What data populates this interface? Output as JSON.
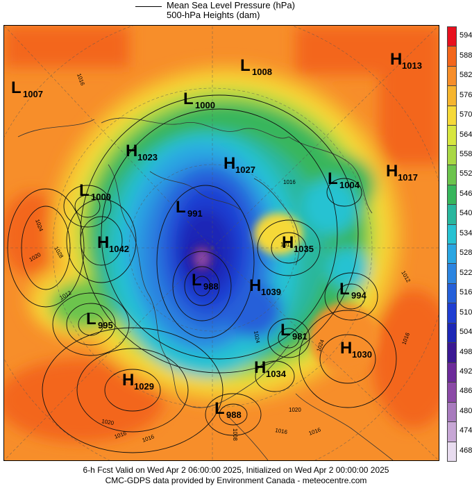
{
  "legend": {
    "line1": "Mean Sea Level Pressure (hPa)",
    "line2": "500-hPa Heights (dam)"
  },
  "colorbar": {
    "levels": [
      "594",
      "588",
      "582",
      "576",
      "570",
      "564",
      "558",
      "552",
      "546",
      "540",
      "534",
      "528",
      "522",
      "516",
      "510",
      "504",
      "498",
      "492",
      "486",
      "480",
      "474",
      "468"
    ],
    "colors": [
      "#e8101e",
      "#f3661c",
      "#f78e2a",
      "#f6b52e",
      "#f6d938",
      "#d7e640",
      "#a9d845",
      "#6cc44d",
      "#37b65c",
      "#29b79e",
      "#27c2d2",
      "#2aa6e2",
      "#2c85e0",
      "#2560d9",
      "#1f3ed2",
      "#1d27b6",
      "#3a1893",
      "#6c2b9a",
      "#8b4aa6",
      "#a87bbd",
      "#c7a7d5",
      "#e8dcef"
    ]
  },
  "pressure_systems": [
    {
      "type": "L",
      "value": "1007"
    },
    {
      "type": "L",
      "value": "1008"
    },
    {
      "type": "H",
      "value": "1013"
    },
    {
      "type": "L",
      "value": "1000"
    },
    {
      "type": "H",
      "value": "1023"
    },
    {
      "type": "H",
      "value": "1027"
    },
    {
      "type": "L",
      "value": "1004"
    },
    {
      "type": "H",
      "value": "1017"
    },
    {
      "type": "L",
      "value": "1000"
    },
    {
      "type": "L",
      "value": "991"
    },
    {
      "type": "H",
      "value": "1042"
    },
    {
      "type": "H",
      "value": "1035"
    },
    {
      "type": "L",
      "value": "988"
    },
    {
      "type": "H",
      "value": "1039"
    },
    {
      "type": "L",
      "value": "994"
    },
    {
      "type": "L",
      "value": "995"
    },
    {
      "type": "L",
      "value": "981"
    },
    {
      "type": "H",
      "value": "1030"
    },
    {
      "type": "H",
      "value": "1034"
    },
    {
      "type": "H",
      "value": "1029"
    },
    {
      "type": "L",
      "value": "988"
    }
  ],
  "isobar_labels": [
    "1016",
    "1024",
    "1028",
    "1020",
    "1012",
    "1016",
    "1024",
    "1020",
    "1016",
    "1020",
    "1008",
    "1016",
    "1012",
    "1016",
    "1012",
    "1024",
    "1016",
    "1016"
  ],
  "footer": {
    "line1": "6-h Fcst Valid on Wed Apr  2 06:00:00 2025, Initialized on Wed Apr  2 00:00:00 2025",
    "line2": "CMC-GDPS data provided by Environment Canada - meteocentre.com"
  }
}
